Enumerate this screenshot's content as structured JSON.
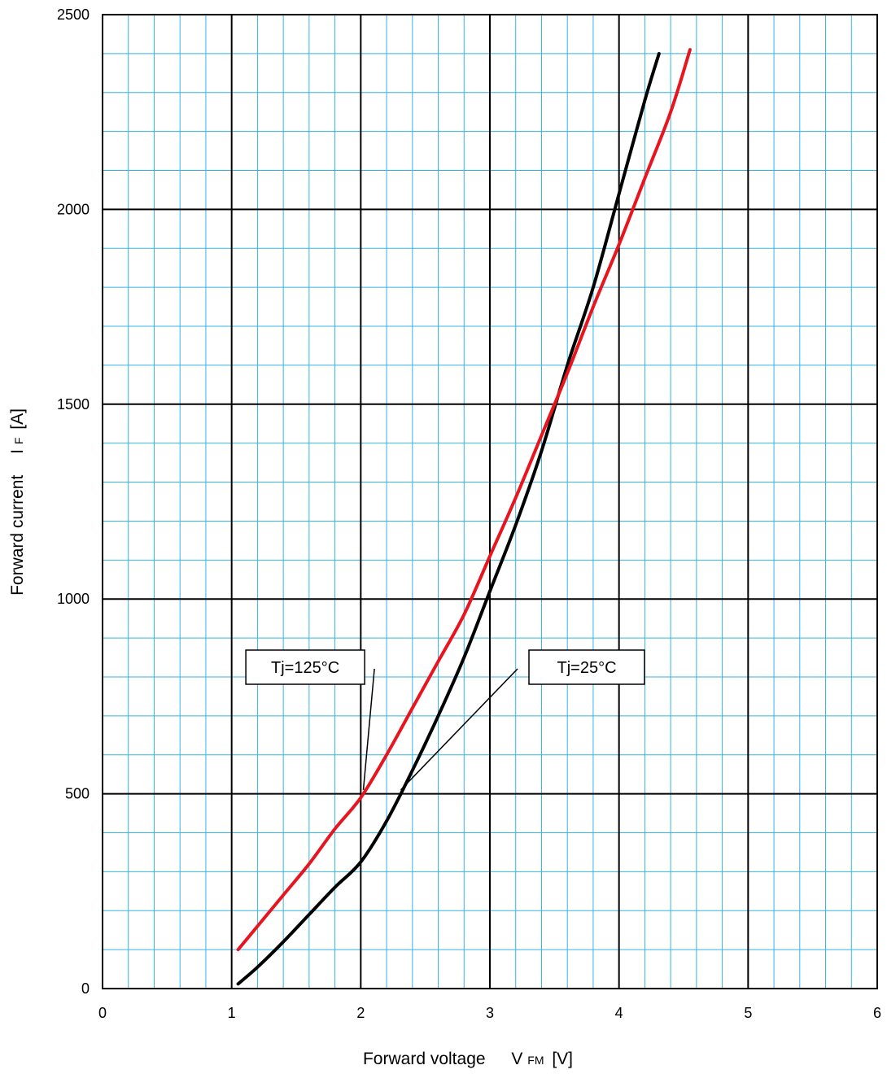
{
  "chart_data": {
    "type": "line",
    "xlabel": {
      "main": "Forward voltage",
      "symbol": "V",
      "subscript": "FM",
      "unit": "[V]"
    },
    "ylabel": {
      "main": "Forward current",
      "symbol": "I",
      "subscript": "F",
      "unit": "[A]"
    },
    "xlim": [
      0,
      6
    ],
    "ylim": [
      0,
      2500
    ],
    "x_ticks": [
      "0",
      "1",
      "2",
      "3",
      "4",
      "5",
      "6"
    ],
    "y_ticks": [
      "0",
      "500",
      "1000",
      "1500",
      "2000",
      "2500"
    ],
    "grid": {
      "major": true,
      "minor": true,
      "x_minor_step": 0.2,
      "y_minor_step": 100
    },
    "colors": {
      "major_grid": "#000000",
      "minor_grid": "#33b5e5",
      "tj25": "#000000",
      "tj125": "#e8141e"
    },
    "series": [
      {
        "name": "Tj=25°C",
        "color": "#000000",
        "x": [
          1.05,
          1.2,
          1.4,
          1.6,
          1.8,
          2.0,
          2.2,
          2.4,
          2.6,
          2.8,
          3.0,
          3.2,
          3.4,
          3.6,
          3.8,
          4.0,
          4.2,
          4.31
        ],
        "y": [
          12,
          55,
          120,
          190,
          260,
          325,
          430,
          560,
          700,
          850,
          1020,
          1190,
          1380,
          1600,
          1800,
          2040,
          2280,
          2400
        ]
      },
      {
        "name": "Tj=125°C",
        "color": "#e8141e",
        "x": [
          1.05,
          1.2,
          1.4,
          1.6,
          1.8,
          2.0,
          2.2,
          2.4,
          2.6,
          2.8,
          3.0,
          3.2,
          3.4,
          3.6,
          3.8,
          4.0,
          4.2,
          4.4,
          4.55
        ],
        "y": [
          100,
          160,
          240,
          320,
          410,
          490,
          600,
          720,
          840,
          960,
          1110,
          1260,
          1420,
          1580,
          1750,
          1910,
          2080,
          2250,
          2410
        ]
      }
    ],
    "annotations": [
      {
        "label": "Tj=125°C",
        "box": [
          1.57,
          825
        ],
        "target": [
          2.02,
          510
        ]
      },
      {
        "label": "Tj=25°C",
        "box": [
          3.75,
          825
        ],
        "target": [
          2.31,
          510
        ]
      }
    ]
  }
}
